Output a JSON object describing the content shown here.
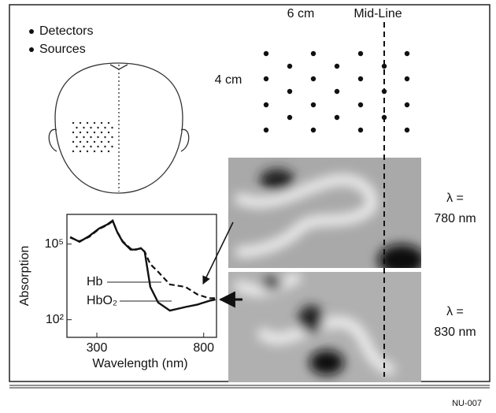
{
  "legend": {
    "items": [
      "Detectors",
      "Sources"
    ]
  },
  "probe_layout": {
    "width_label": "6 cm",
    "height_label": "4 cm",
    "midline_label": "Mid-Line"
  },
  "images": [
    {
      "label_line1": "λ =",
      "label_line2": "780 nm"
    },
    {
      "label_line1": "λ =",
      "label_line2": "830 nm"
    }
  ],
  "chart_data": {
    "type": "line",
    "xlabel": "Wavelength (nm)",
    "ylabel": "Absorption",
    "x": [
      175,
      219,
      263,
      311,
      348,
      374,
      396,
      421,
      458,
      484,
      506,
      524,
      550,
      587,
      642,
      715,
      771,
      826,
      855
    ],
    "series": [
      {
        "name": "Hb",
        "color": "#111111",
        "dashed": true,
        "values": [
          180000,
          130000,
          190000,
          400000,
          560000,
          800000,
          300000,
          130000,
          65000,
          62000,
          66000,
          50000,
          16000,
          7900,
          2500,
          2000,
          1000,
          710,
          710
        ]
      },
      {
        "name": "HbO₂",
        "color": "#111111",
        "dashed": false,
        "values": [
          190000,
          123000,
          204000,
          417000,
          589000,
          851000,
          288000,
          123000,
          60000,
          60000,
          69000,
          49000,
          2000,
          480,
          230,
          320,
          400,
          560,
          630
        ]
      }
    ],
    "xlim": [
      160,
      860
    ],
    "ylim": [
      20,
      1500000
    ],
    "log_y": true,
    "xticks": [
      300,
      800
    ],
    "yticks": [
      {
        "value": 100000,
        "label": "10⁵"
      },
      {
        "value": 100,
        "label": "10²"
      }
    ]
  },
  "footer": {
    "code": "NU-007"
  }
}
